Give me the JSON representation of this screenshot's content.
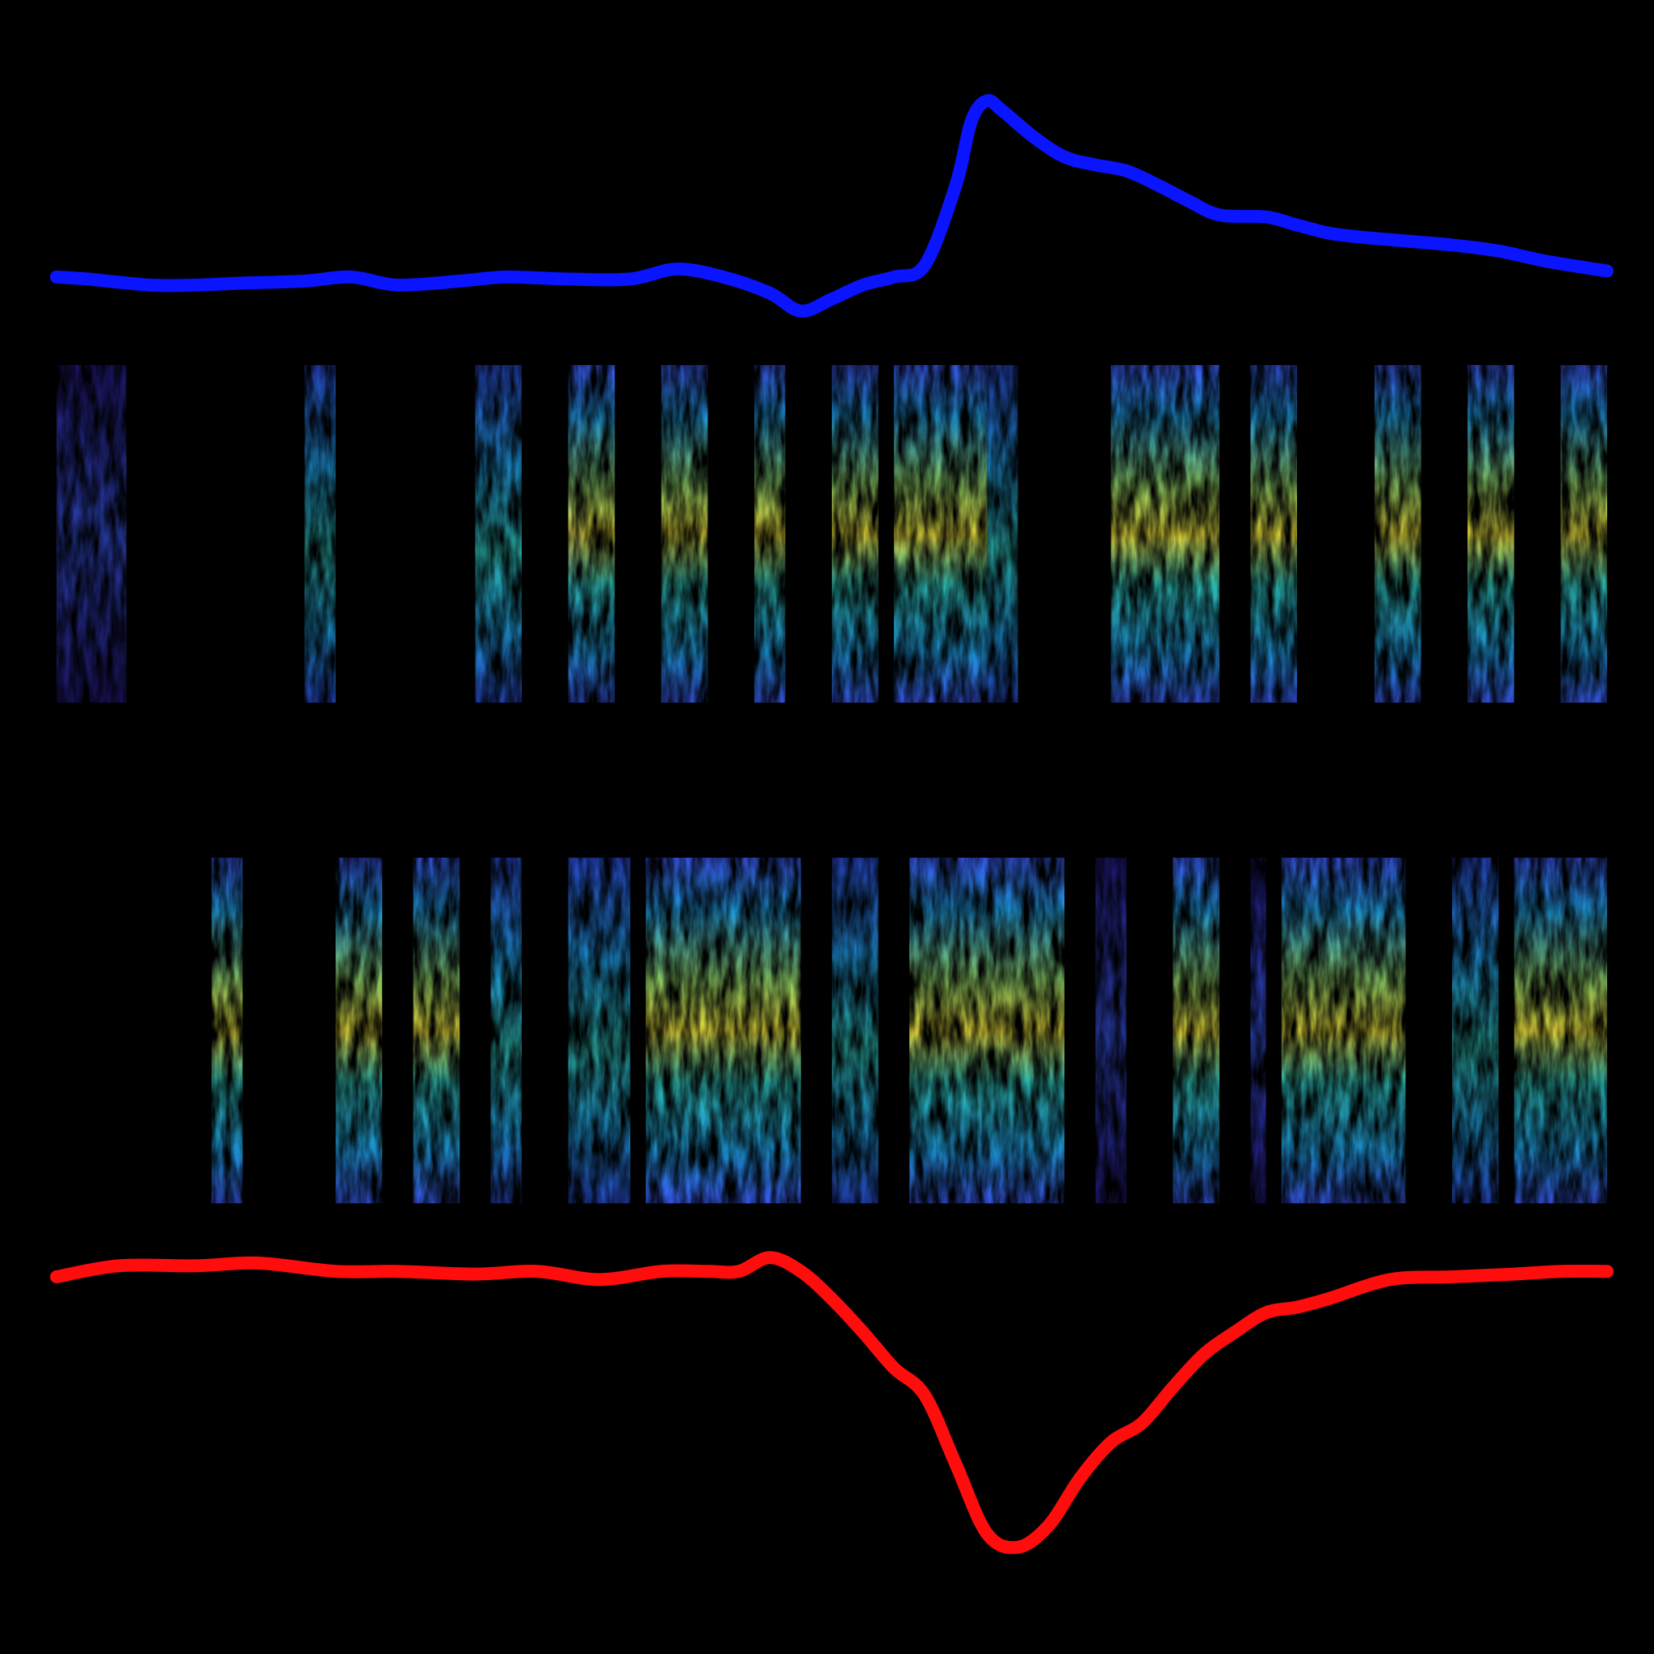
{
  "colors": {
    "background": "#000000",
    "top_trace": "#0a14ff",
    "bottom_trace": "#ff0d0d",
    "spectrogram_colormap": [
      "#000000",
      "#2b1f9e",
      "#3c5dff",
      "#1fa0e8",
      "#2ec2b8",
      "#8fd36a",
      "#f2e33a"
    ]
  },
  "chart_data": [
    {
      "type": "line",
      "name": "top-trace",
      "color": "#0a14ff",
      "x": [
        0,
        0.02,
        0.06,
        0.09,
        0.12,
        0.16,
        0.19,
        0.22,
        0.26,
        0.29,
        0.33,
        0.37,
        0.4,
        0.43,
        0.46,
        0.48,
        0.5,
        0.52,
        0.54,
        0.56,
        0.58,
        0.59,
        0.6,
        0.61,
        0.63,
        0.65,
        0.67,
        0.69,
        0.71,
        0.73,
        0.75,
        0.78,
        0.8,
        0.82,
        0.84,
        0.87,
        0.9,
        0.93,
        0.96,
        1.0
      ],
      "y": [
        0.02,
        0.01,
        -0.02,
        -0.02,
        -0.01,
        0.0,
        0.02,
        -0.02,
        0.0,
        0.02,
        0.01,
        0.01,
        0.06,
        0.02,
        -0.06,
        -0.15,
        -0.09,
        -0.02,
        0.02,
        0.08,
        0.48,
        0.8,
        0.9,
        0.85,
        0.72,
        0.62,
        0.58,
        0.55,
        0.48,
        0.4,
        0.33,
        0.32,
        0.28,
        0.24,
        0.22,
        0.2,
        0.18,
        0.15,
        0.1,
        0.05
      ],
      "ylim": [
        -0.25,
        1.0
      ]
    },
    {
      "type": "heatmap",
      "name": "top-spectrogram",
      "xlim": [
        0,
        1
      ],
      "bands": [
        {
          "x0": 0.0,
          "x1": 0.045,
          "intensity": 0.15
        },
        {
          "x0": 0.16,
          "x1": 0.18,
          "intensity": 0.55
        },
        {
          "x0": 0.27,
          "x1": 0.3,
          "intensity": 0.65
        },
        {
          "x0": 0.33,
          "x1": 0.34,
          "intensity": 0.2
        },
        {
          "x0": 0.33,
          "x1": 0.36,
          "intensity": 0.7
        },
        {
          "x0": 0.39,
          "x1": 0.42,
          "intensity": 0.75
        },
        {
          "x0": 0.45,
          "x1": 0.47,
          "intensity": 0.7
        },
        {
          "x0": 0.5,
          "x1": 0.53,
          "intensity": 0.7
        },
        {
          "x0": 0.54,
          "x1": 0.6,
          "intensity": 0.8
        },
        {
          "x0": 0.6,
          "x1": 0.62,
          "intensity": 0.5
        },
        {
          "x0": 0.68,
          "x1": 0.75,
          "intensity": 0.85
        },
        {
          "x0": 0.77,
          "x1": 0.8,
          "intensity": 0.7
        },
        {
          "x0": 0.85,
          "x1": 0.88,
          "intensity": 0.7
        },
        {
          "x0": 0.91,
          "x1": 0.94,
          "intensity": 0.75
        },
        {
          "x0": 0.97,
          "x1": 1.0,
          "intensity": 0.7
        }
      ]
    },
    {
      "type": "heatmap",
      "name": "bottom-spectrogram",
      "xlim": [
        0,
        1
      ],
      "bands": [
        {
          "x0": 0.1,
          "x1": 0.12,
          "intensity": 0.7
        },
        {
          "x0": 0.18,
          "x1": 0.21,
          "intensity": 0.75
        },
        {
          "x0": 0.23,
          "x1": 0.26,
          "intensity": 0.75
        },
        {
          "x0": 0.28,
          "x1": 0.3,
          "intensity": 0.65
        },
        {
          "x0": 0.33,
          "x1": 0.37,
          "intensity": 0.6
        },
        {
          "x0": 0.38,
          "x1": 0.48,
          "intensity": 0.85
        },
        {
          "x0": 0.5,
          "x1": 0.53,
          "intensity": 0.55
        },
        {
          "x0": 0.55,
          "x1": 0.65,
          "intensity": 0.8
        },
        {
          "x0": 0.67,
          "x1": 0.69,
          "intensity": 0.2
        },
        {
          "x0": 0.72,
          "x1": 0.75,
          "intensity": 0.7
        },
        {
          "x0": 0.77,
          "x1": 0.78,
          "intensity": 0.3
        },
        {
          "x0": 0.79,
          "x1": 0.87,
          "intensity": 0.8
        },
        {
          "x0": 0.9,
          "x1": 0.93,
          "intensity": 0.6
        },
        {
          "x0": 0.94,
          "x1": 1.0,
          "intensity": 0.75
        }
      ]
    },
    {
      "type": "line",
      "name": "bottom-trace",
      "color": "#ff0d0d",
      "x": [
        0,
        0.04,
        0.09,
        0.13,
        0.18,
        0.22,
        0.27,
        0.31,
        0.35,
        0.39,
        0.42,
        0.44,
        0.46,
        0.48,
        0.5,
        0.52,
        0.54,
        0.56,
        0.58,
        0.6,
        0.62,
        0.64,
        0.66,
        0.68,
        0.7,
        0.72,
        0.74,
        0.76,
        0.78,
        0.8,
        0.82,
        0.86,
        0.9,
        0.94,
        0.97,
        1.0
      ],
      "y": [
        -0.02,
        0.02,
        0.02,
        0.03,
        0.0,
        0.0,
        -0.01,
        0.0,
        -0.03,
        0.0,
        0.0,
        0.0,
        0.05,
        0.0,
        -0.1,
        -0.22,
        -0.35,
        -0.45,
        -0.7,
        -0.95,
        -1.0,
        -0.92,
        -0.75,
        -0.62,
        -0.55,
        -0.42,
        -0.3,
        -0.22,
        -0.15,
        -0.13,
        -0.1,
        -0.03,
        -0.02,
        -0.01,
        0.0,
        0.0
      ],
      "ylim": [
        -1.1,
        0.1
      ]
    }
  ]
}
